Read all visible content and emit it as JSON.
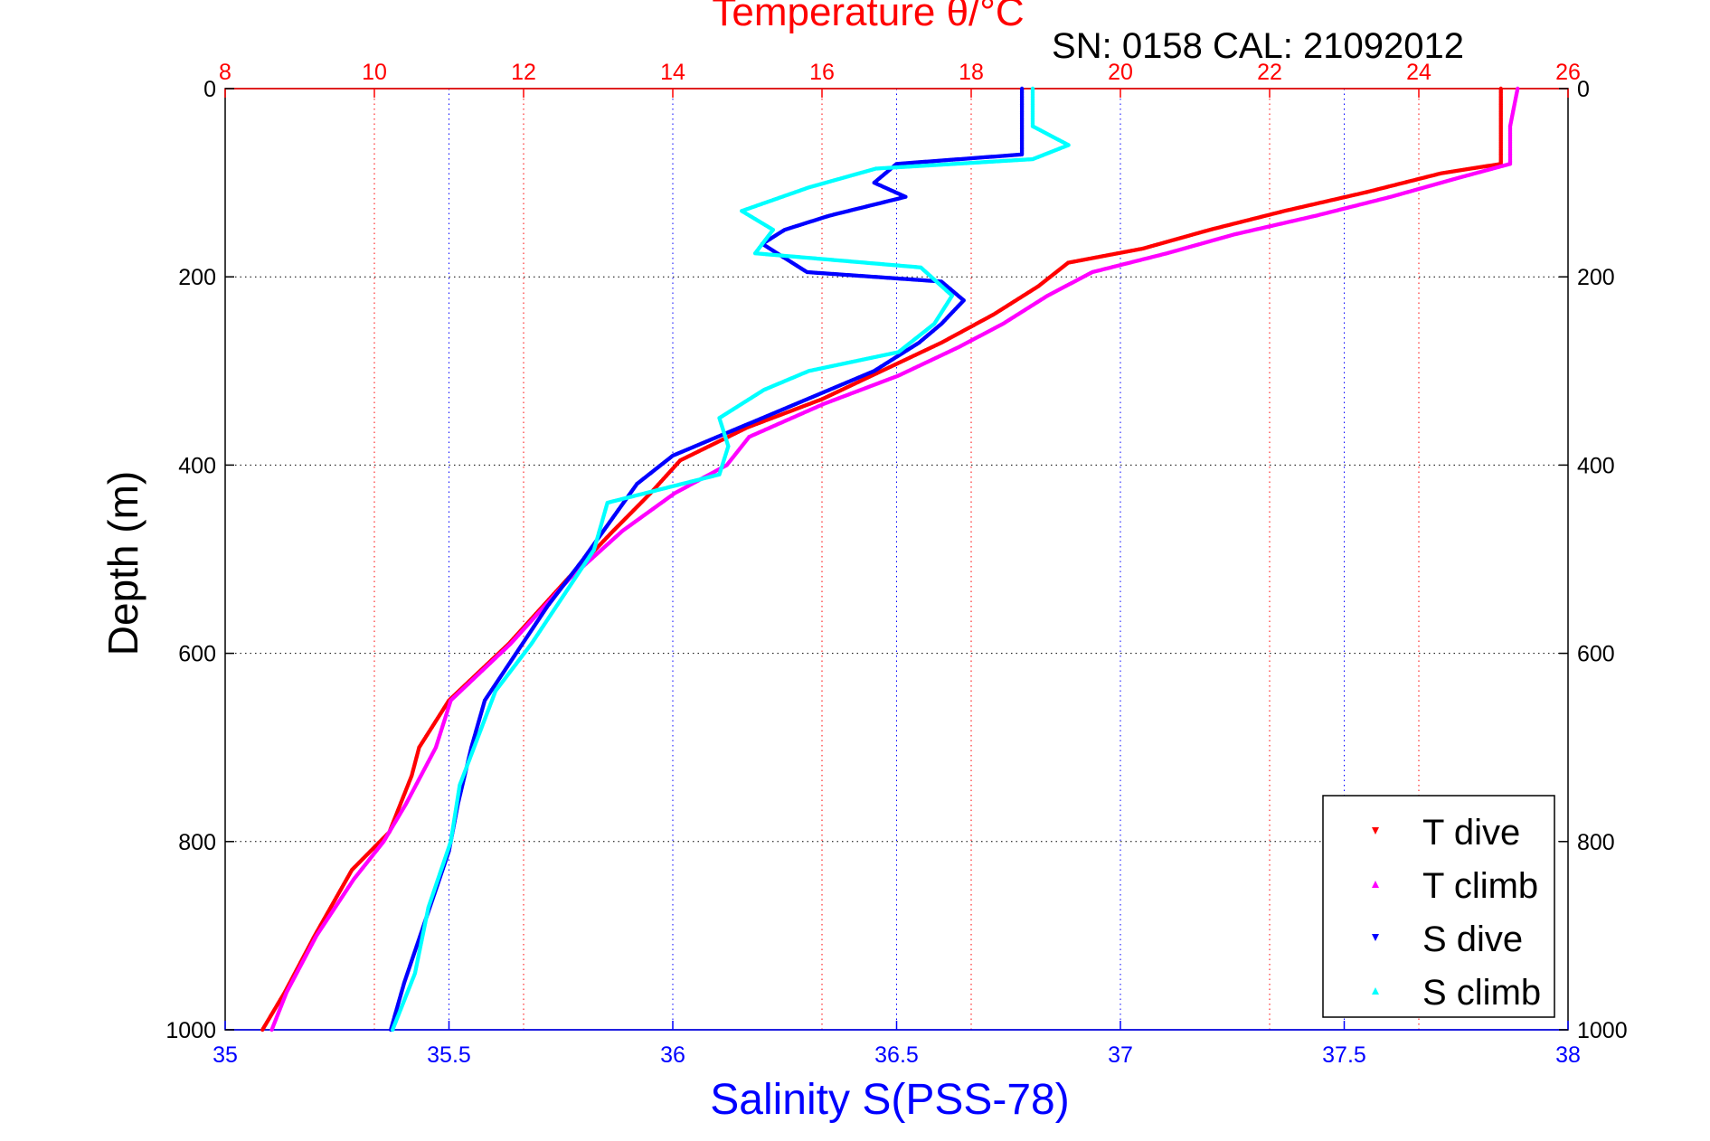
{
  "chart_data": {
    "type": "scatter",
    "title": "Temperature θ/°C",
    "subtitle": "SN: 0158   CAL: 21092012",
    "xlabel": "Salinity S(PSS-78)",
    "ylabel": "Depth (m)",
    "x_bottom": {
      "label": "Salinity S(PSS-78)",
      "lim": [
        35,
        38
      ],
      "ticks": [
        "35",
        "35.5",
        "36",
        "36.5",
        "37",
        "37.5",
        "38"
      ],
      "color": "#0000ff"
    },
    "x_top": {
      "label": "Temperature θ/°C",
      "lim": [
        8,
        26
      ],
      "ticks": [
        "8",
        "10",
        "12",
        "14",
        "16",
        "18",
        "20",
        "22",
        "24",
        "26"
      ],
      "color": "#ff0000"
    },
    "y": {
      "lim": [
        0,
        1000
      ],
      "reversed": true,
      "ticks": [
        "0",
        "200",
        "400",
        "600",
        "800",
        "1000"
      ]
    },
    "grid": true,
    "legend_position": "bottom-right",
    "series": [
      {
        "name": "T dive",
        "axis": "temperature",
        "color": "#ff0000",
        "points": [
          [
            25.1,
            0
          ],
          [
            25.1,
            40
          ],
          [
            25.1,
            80
          ],
          [
            24.3,
            90
          ],
          [
            23.3,
            110
          ],
          [
            22.2,
            130
          ],
          [
            21.2,
            150
          ],
          [
            20.3,
            170
          ],
          [
            19.3,
            185
          ],
          [
            18.9,
            210
          ],
          [
            18.3,
            240
          ],
          [
            17.6,
            270
          ],
          [
            16.8,
            300
          ],
          [
            16.0,
            330
          ],
          [
            15.0,
            360
          ],
          [
            14.1,
            395
          ],
          [
            13.7,
            430
          ],
          [
            13.2,
            470
          ],
          [
            12.6,
            520
          ],
          [
            11.8,
            590
          ],
          [
            11.0,
            650
          ],
          [
            10.6,
            700
          ],
          [
            10.5,
            730
          ],
          [
            10.2,
            790
          ],
          [
            9.7,
            830
          ],
          [
            9.2,
            900
          ],
          [
            8.8,
            960
          ],
          [
            8.5,
            1000
          ]
        ]
      },
      {
        "name": "T climb",
        "axis": "temperature",
        "color": "#ff00ff",
        "points": [
          [
            25.3,
            0
          ],
          [
            25.2,
            40
          ],
          [
            25.2,
            80
          ],
          [
            24.5,
            95
          ],
          [
            23.6,
            115
          ],
          [
            22.6,
            135
          ],
          [
            21.5,
            155
          ],
          [
            20.6,
            175
          ],
          [
            19.6,
            195
          ],
          [
            19.0,
            220
          ],
          [
            18.4,
            250
          ],
          [
            17.8,
            275
          ],
          [
            17.0,
            305
          ],
          [
            16.0,
            335
          ],
          [
            15.0,
            370
          ],
          [
            14.7,
            400
          ],
          [
            14.0,
            430
          ],
          [
            13.3,
            470
          ],
          [
            12.6,
            520
          ],
          [
            11.8,
            590
          ],
          [
            11.0,
            650
          ],
          [
            10.8,
            700
          ],
          [
            10.4,
            760
          ],
          [
            10.1,
            800
          ],
          [
            9.7,
            840
          ],
          [
            9.2,
            900
          ],
          [
            8.8,
            960
          ],
          [
            8.6,
            1000
          ]
        ]
      },
      {
        "name": "S dive",
        "axis": "salinity",
        "color": "#0000ff",
        "points": [
          [
            36.78,
            0
          ],
          [
            36.78,
            40
          ],
          [
            36.78,
            70
          ],
          [
            36.5,
            80
          ],
          [
            36.45,
            100
          ],
          [
            36.52,
            115
          ],
          [
            36.35,
            135
          ],
          [
            36.25,
            150
          ],
          [
            36.2,
            165
          ],
          [
            36.25,
            180
          ],
          [
            36.3,
            195
          ],
          [
            36.6,
            205
          ],
          [
            36.65,
            225
          ],
          [
            36.6,
            250
          ],
          [
            36.55,
            270
          ],
          [
            36.45,
            300
          ],
          [
            36.3,
            330
          ],
          [
            36.15,
            360
          ],
          [
            36.0,
            390
          ],
          [
            35.92,
            420
          ],
          [
            35.86,
            460
          ],
          [
            35.8,
            500
          ],
          [
            35.72,
            550
          ],
          [
            35.65,
            600
          ],
          [
            35.58,
            650
          ],
          [
            35.55,
            700
          ],
          [
            35.52,
            760
          ],
          [
            35.5,
            810
          ],
          [
            35.45,
            880
          ],
          [
            35.4,
            950
          ],
          [
            35.37,
            1000
          ]
        ]
      },
      {
        "name": "S climb",
        "axis": "salinity",
        "color": "#00ffff",
        "points": [
          [
            36.8,
            0
          ],
          [
            36.8,
            40
          ],
          [
            36.88,
            60
          ],
          [
            36.8,
            75
          ],
          [
            36.45,
            85
          ],
          [
            36.3,
            105
          ],
          [
            36.15,
            130
          ],
          [
            36.22,
            150
          ],
          [
            36.18,
            175
          ],
          [
            36.55,
            190
          ],
          [
            36.62,
            220
          ],
          [
            36.58,
            250
          ],
          [
            36.5,
            280
          ],
          [
            36.3,
            300
          ],
          [
            36.2,
            320
          ],
          [
            36.1,
            350
          ],
          [
            36.12,
            380
          ],
          [
            36.1,
            410
          ],
          [
            35.85,
            440
          ],
          [
            35.82,
            490
          ],
          [
            35.75,
            540
          ],
          [
            35.68,
            590
          ],
          [
            35.6,
            640
          ],
          [
            35.56,
            690
          ],
          [
            35.52,
            740
          ],
          [
            35.5,
            800
          ],
          [
            35.45,
            870
          ],
          [
            35.42,
            940
          ],
          [
            35.37,
            1000
          ]
        ]
      }
    ]
  },
  "legend": {
    "items": [
      {
        "label": "T dive",
        "color": "#ff0000",
        "marker": "down"
      },
      {
        "label": "T climb",
        "color": "#ff00ff",
        "marker": "up"
      },
      {
        "label": "S dive",
        "color": "#0000ff",
        "marker": "down"
      },
      {
        "label": "S climb",
        "color": "#00ffff",
        "marker": "up"
      }
    ]
  }
}
